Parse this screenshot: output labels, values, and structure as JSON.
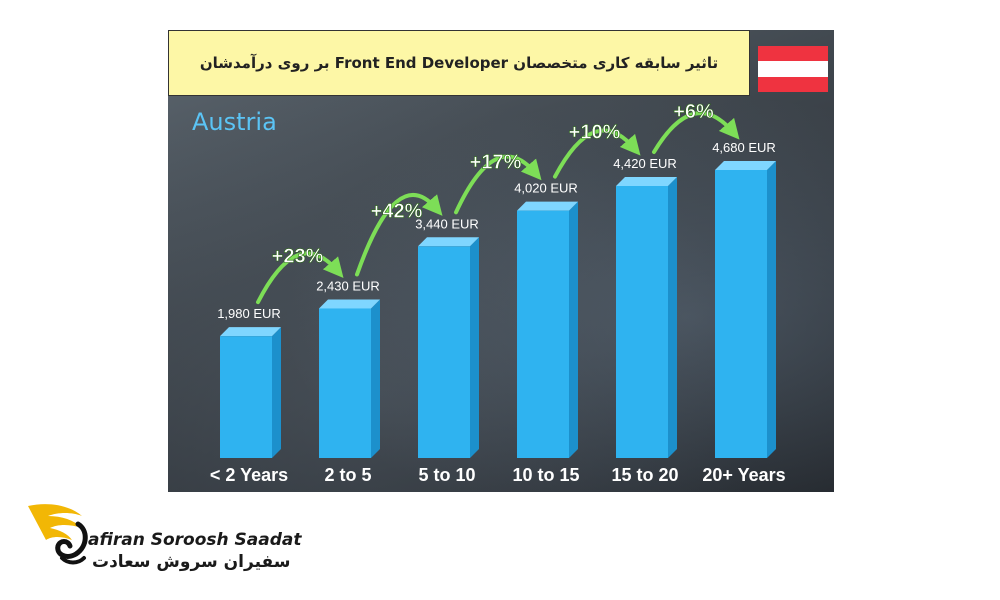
{
  "title": "تاثیر سابقه کاری متخصصان Front End Developer بر روی درآمدشان",
  "country": "Austria",
  "flag_colors": [
    "#ef3340",
    "#ffffff",
    "#ef3340"
  ],
  "colors": {
    "bar": "#2fb3f0",
    "bar_side": "#1c90cc",
    "bar_top": "#7fd6ff",
    "arrow": "#7dde57",
    "title_bg": "#fdf7a6"
  },
  "logo": {
    "text_en": "afiran Soroosh Saadat",
    "text_fa": "سفیران سروش سعادت",
    "icon": "bird-wing-logo-icon"
  },
  "chart_data": {
    "type": "bar",
    "categories": [
      "< 2 Years",
      "2 to 5",
      "5 to 10",
      "10 to 15",
      "15 to 20",
      "20+ Years"
    ],
    "values": [
      1980,
      2430,
      3440,
      4020,
      4420,
      4680
    ],
    "value_labels": [
      "1,980 EUR",
      "2,430 EUR",
      "3,440 EUR",
      "4,020 EUR",
      "4,420 EUR",
      "4,680 EUR"
    ],
    "growth_labels": [
      "+23%",
      "+42%",
      "+17%",
      "+10%",
      "+6%"
    ],
    "unit": "EUR",
    "ylim": [
      0,
      4680
    ],
    "title": "Austria",
    "xlabel": "",
    "ylabel": "",
    "grid": false
  }
}
